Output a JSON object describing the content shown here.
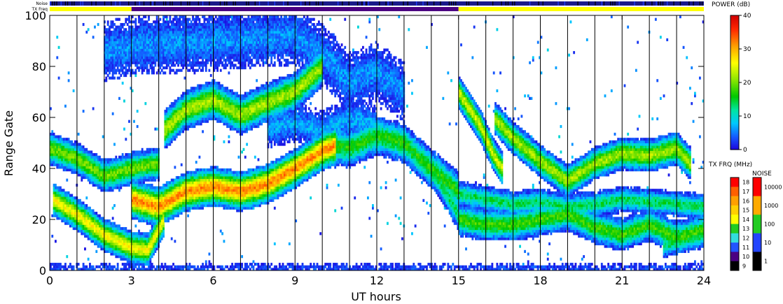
{
  "chart_data": {
    "type": "heatmap",
    "title": "",
    "xlabel": "UT hours",
    "ylabel": "Range Gate",
    "xlim": [
      0,
      24
    ],
    "ylim": [
      0,
      100
    ],
    "x_ticks": [
      "0",
      "3",
      "6",
      "9",
      "12",
      "15",
      "18",
      "21",
      "24"
    ],
    "y_ticks": [
      "0",
      "20",
      "40",
      "60",
      "80",
      "100"
    ],
    "vertical_dividers_ut": [
      1,
      2,
      3,
      4,
      5,
      6,
      7,
      8,
      9,
      10,
      11,
      12,
      13,
      14,
      15,
      16,
      17,
      18,
      19,
      20,
      21,
      22,
      23
    ],
    "top_strips": {
      "noise_label": "Noise",
      "txfreq_label": "TX Freq",
      "txfreq_segments": [
        {
          "start": 0,
          "end": 3,
          "color": "#ffff00"
        },
        {
          "start": 3,
          "end": 15,
          "color": "#4b0082"
        },
        {
          "start": 15,
          "end": 24,
          "color": "#ffff00"
        }
      ]
    },
    "power_colorbar": {
      "title": "POWER (dB)",
      "min": 0,
      "max": 40,
      "ticks": [
        "40",
        "30",
        "20",
        "10",
        "0"
      ]
    },
    "txfreq_scale": {
      "title": "TX FRQ (MHz)",
      "labels": [
        "18",
        "17",
        "16",
        "15",
        "14",
        "13",
        "12",
        "11",
        "10",
        "9"
      ],
      "colors": [
        "#ff0000",
        "#ff6000",
        "#ffa000",
        "#ffd000",
        "#ffff00",
        "#22cc22",
        "#33dddd",
        "#2255ff",
        "#4b0082",
        "#000000"
      ]
    },
    "noise_scale": {
      "title": "NOISE",
      "labels": [
        "10000",
        "1000",
        "100",
        "10",
        "1"
      ],
      "colors": [
        "#ff0000",
        "#ffaa00",
        "#22cc22",
        "#2244ff",
        "#000000"
      ]
    },
    "bands": [
      {
        "pts": [
          [
            0,
            48
          ],
          [
            1,
            44
          ],
          [
            2,
            37
          ],
          [
            3,
            40
          ],
          [
            4,
            42
          ]
        ],
        "width": 5,
        "peak": 20
      },
      {
        "pts": [
          [
            0.1,
            28
          ],
          [
            1,
            22
          ],
          [
            2,
            14
          ],
          [
            3,
            9
          ],
          [
            3.6,
            8
          ],
          [
            4.2,
            20
          ]
        ],
        "width": 5,
        "peak": 26
      },
      {
        "pts": [
          [
            3,
            28
          ],
          [
            4,
            25
          ],
          [
            5,
            31
          ],
          [
            6,
            33
          ],
          [
            7,
            31
          ],
          [
            8,
            34
          ],
          [
            9,
            40
          ],
          [
            10,
            47
          ],
          [
            10.5,
            49
          ]
        ],
        "width": 6,
        "peak": 32
      },
      {
        "pts": [
          [
            4.2,
            55
          ],
          [
            5,
            63
          ],
          [
            6,
            67
          ],
          [
            7,
            61
          ],
          [
            8,
            66
          ],
          [
            9,
            70
          ],
          [
            10,
            80
          ]
        ],
        "width": 6,
        "peak": 22
      },
      {
        "pts": [
          [
            10,
            50
          ],
          [
            11,
            48
          ],
          [
            12,
            53
          ],
          [
            13,
            50
          ],
          [
            14,
            40
          ],
          [
            15,
            31
          ]
        ],
        "width": 6,
        "peak": 17
      },
      {
        "pts": [
          [
            13.5,
            45
          ],
          [
            14.3,
            35
          ],
          [
            15,
            22
          ]
        ],
        "width": 5,
        "peak": 14
      },
      {
        "pts": [
          [
            15,
            70
          ],
          [
            15.8,
            57
          ],
          [
            16.3,
            45
          ],
          [
            16.6,
            40
          ]
        ],
        "width": 5,
        "peak": 24
      },
      {
        "pts": [
          [
            16.3,
            60
          ],
          [
            17,
            52
          ],
          [
            18,
            43
          ],
          [
            19,
            35
          ],
          [
            20,
            42
          ],
          [
            21,
            46
          ],
          [
            22,
            45
          ],
          [
            23,
            48
          ],
          [
            23.5,
            42
          ]
        ],
        "width": 5,
        "peak": 22
      },
      {
        "pts": [
          [
            15,
            30
          ],
          [
            16,
            28
          ],
          [
            17,
            26
          ],
          [
            18,
            27
          ],
          [
            19,
            25
          ],
          [
            20,
            26
          ],
          [
            21,
            28
          ],
          [
            22,
            27
          ],
          [
            23,
            26
          ],
          [
            24,
            25
          ]
        ],
        "width": 4,
        "peak": 14
      },
      {
        "pts": [
          [
            15,
            20
          ],
          [
            16,
            18
          ],
          [
            17,
            18
          ],
          [
            18,
            20
          ],
          [
            19,
            22
          ],
          [
            20,
            17
          ],
          [
            21,
            14
          ],
          [
            22,
            18
          ],
          [
            23,
            13
          ],
          [
            24,
            16
          ]
        ],
        "width": 5,
        "peak": 18
      },
      {
        "pts": [
          [
            22.5,
            10
          ],
          [
            24,
            14
          ]
        ],
        "width": 4,
        "peak": 14
      },
      {
        "pts": [
          [
            2,
            86
          ],
          [
            3,
            88
          ],
          [
            9,
            92
          ],
          [
            10,
            85
          ],
          [
            11,
            74
          ],
          [
            12,
            78
          ],
          [
            13,
            70
          ]
        ],
        "width": 9,
        "peak": 6
      },
      {
        "pts": [
          [
            8,
            56
          ],
          [
            9,
            58
          ],
          [
            10,
            55
          ],
          [
            11,
            60
          ],
          [
            12,
            57
          ]
        ],
        "width": 6,
        "peak": 7
      },
      {
        "pts": [
          [
            0,
            1
          ],
          [
            24,
            1
          ]
        ],
        "width": 1.2,
        "peak": 3
      }
    ]
  }
}
